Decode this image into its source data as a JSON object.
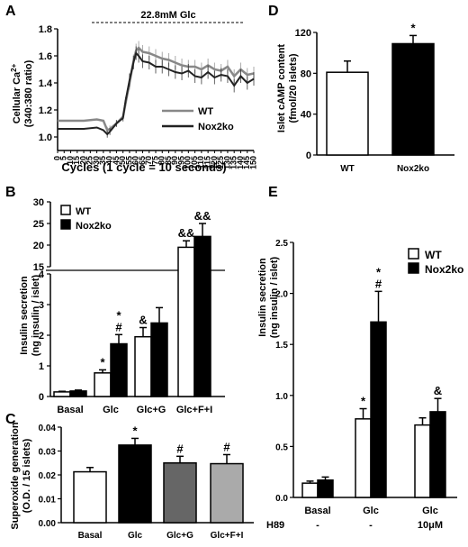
{
  "chart_data": [
    {
      "panel": "A",
      "type": "line",
      "annotation": "22.8mM Glc",
      "xlabel": "Cycles (1 cycle = 10 seconds)",
      "ylabel_line1": "Cellular Ca",
      "ylabel_sup": "2+",
      "ylabel_line2": "(340:380 ratio)",
      "xlim": [
        0,
        150
      ],
      "ylim": [
        0.9,
        1.8
      ],
      "xticks": [
        0,
        5,
        10,
        15,
        20,
        25,
        30,
        35,
        40,
        45,
        50,
        55,
        60,
        65,
        70,
        75,
        80,
        85,
        90,
        95,
        100,
        105,
        110,
        115,
        120,
        125,
        130,
        135,
        140,
        145,
        150
      ],
      "yticks": [
        "1.0",
        "1.2",
        "1.4",
        "1.6",
        "1.8"
      ],
      "series": [
        {
          "name": "WT",
          "color": "#888888",
          "x": [
            0,
            10,
            20,
            30,
            35,
            38,
            40,
            45,
            50,
            52,
            55,
            58,
            60,
            62,
            65,
            70,
            75,
            80,
            85,
            90,
            95,
            100,
            105,
            110,
            115,
            120,
            125,
            130,
            135,
            140,
            145,
            150
          ],
          "y": [
            1.12,
            1.12,
            1.12,
            1.13,
            1.12,
            1.05,
            1.06,
            1.1,
            1.15,
            1.25,
            1.4,
            1.56,
            1.64,
            1.66,
            1.63,
            1.62,
            1.6,
            1.58,
            1.57,
            1.55,
            1.53,
            1.52,
            1.52,
            1.5,
            1.53,
            1.5,
            1.49,
            1.52,
            1.45,
            1.5,
            1.46,
            1.47
          ]
        },
        {
          "name": "Nox2ko",
          "color": "#222222",
          "x": [
            0,
            10,
            20,
            30,
            35,
            38,
            40,
            45,
            50,
            52,
            55,
            58,
            60,
            62,
            65,
            70,
            75,
            80,
            85,
            90,
            95,
            100,
            105,
            110,
            115,
            120,
            125,
            130,
            135,
            140,
            145,
            150
          ],
          "y": [
            1.06,
            1.06,
            1.06,
            1.07,
            1.05,
            1.02,
            1.04,
            1.1,
            1.14,
            1.27,
            1.42,
            1.55,
            1.62,
            1.6,
            1.56,
            1.55,
            1.52,
            1.52,
            1.5,
            1.48,
            1.47,
            1.49,
            1.45,
            1.44,
            1.48,
            1.44,
            1.46,
            1.45,
            1.38,
            1.45,
            1.4,
            1.43
          ]
        }
      ]
    },
    {
      "panel": "B",
      "type": "bar",
      "ylabel_line1": "Insulin secretion",
      "ylabel_line2": "(ng insulin / islet)",
      "categories": [
        "Basal",
        "Glc",
        "Glc+G",
        "Glc+F+I"
      ],
      "yticks_lower": [
        "0",
        "1",
        "2",
        "3",
        "4"
      ],
      "yticks_upper": [
        "15",
        "20",
        "25",
        "30"
      ],
      "legend": [
        "WT",
        "Nox2ko"
      ],
      "series": [
        {
          "name": "WT",
          "color": "#ffffff",
          "values": [
            0.15,
            0.77,
            1.95,
            19.5
          ],
          "errors": [
            0.02,
            0.1,
            0.3,
            1.5
          ],
          "marks": [
            "",
            "*",
            "&",
            "&&"
          ]
        },
        {
          "name": "Nox2ko",
          "color": "#000000",
          "values": [
            0.18,
            1.72,
            2.4,
            22.0
          ],
          "errors": [
            0.03,
            0.3,
            0.5,
            3.0
          ],
          "marks": [
            "",
            "*\n#",
            "",
            "&&"
          ]
        }
      ]
    },
    {
      "panel": "C",
      "type": "bar",
      "ylabel_line1": "Superoxide generation",
      "ylabel_line2": "(O.D. / 15 islets)",
      "categories": [
        "Basal",
        "Glc",
        "Glc+G",
        "Glc+F+I"
      ],
      "ylim": [
        0,
        0.04
      ],
      "yticks": [
        "0.00",
        "0.01",
        "0.02",
        "0.03",
        "0.04"
      ],
      "values": [
        0.0213,
        0.0325,
        0.025,
        0.0247
      ],
      "errors": [
        0.0018,
        0.0028,
        0.0028,
        0.0038
      ],
      "colors": [
        "#ffffff",
        "#000000",
        "#666666",
        "#aaaaaa"
      ],
      "marks": [
        "",
        "*",
        "#",
        "#"
      ]
    },
    {
      "panel": "D",
      "type": "bar",
      "ylabel_line1": "Islet cAMP content",
      "ylabel_line2": "(fmol/20 islets)",
      "categories": [
        "WT",
        "Nox2ko"
      ],
      "ylim": [
        0,
        120
      ],
      "yticks": [
        "0",
        "40",
        "80",
        "120"
      ],
      "values": [
        81,
        109
      ],
      "errors": [
        11,
        8
      ],
      "colors": [
        "#ffffff",
        "#000000"
      ],
      "marks": [
        "",
        "*"
      ]
    },
    {
      "panel": "E",
      "type": "bar",
      "ylabel_line1": "Insulin secretion",
      "ylabel_line2": "(ng insulin / islet)",
      "categories": [
        "Basal",
        "Glc",
        "Glc"
      ],
      "h89_label": "H89",
      "h89_values": [
        "-",
        "-",
        "10μM"
      ],
      "ylim": [
        0,
        2.5
      ],
      "yticks": [
        "0.0",
        "0.5",
        "1.0",
        "1.5",
        "2.0",
        "2.5"
      ],
      "legend": [
        "WT",
        "Nox2ko"
      ],
      "series": [
        {
          "name": "WT",
          "color": "#ffffff",
          "values": [
            0.14,
            0.77,
            0.71
          ],
          "errors": [
            0.02,
            0.1,
            0.07
          ],
          "marks": [
            "",
            "*",
            ""
          ]
        },
        {
          "name": "Nox2ko",
          "color": "#000000",
          "values": [
            0.17,
            1.72,
            0.84
          ],
          "errors": [
            0.03,
            0.3,
            0.13
          ],
          "marks": [
            "",
            "*\n#",
            "&"
          ]
        }
      ]
    }
  ],
  "panel_letters": [
    "A",
    "B",
    "C",
    "D",
    "E"
  ]
}
